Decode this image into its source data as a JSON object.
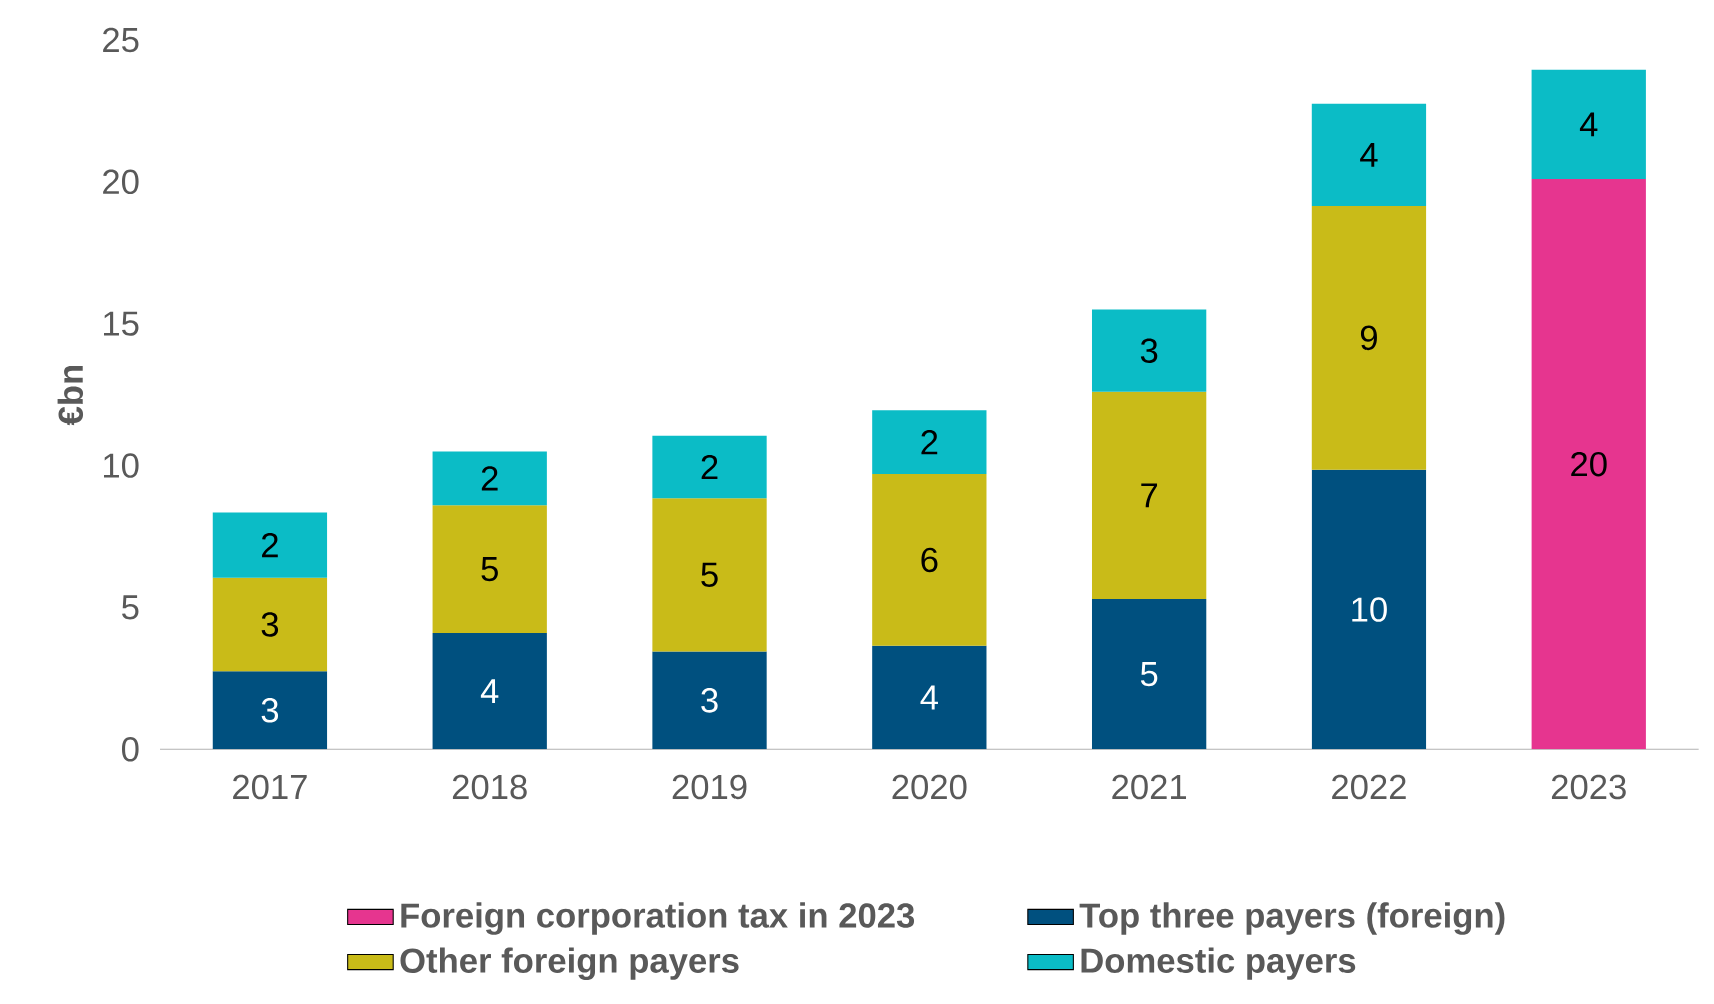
{
  "chart_data": {
    "type": "bar",
    "stacked": true,
    "ylabel": "€bn",
    "categories": [
      "2017",
      "2018",
      "2019",
      "2020",
      "2021",
      "2022",
      "2023"
    ],
    "series": [
      {
        "name": "Foreign corporation tax in 2023",
        "color": "#e6358f",
        "values": [
          null,
          null,
          null,
          null,
          null,
          null,
          20.1
        ],
        "value_labels": [
          null,
          null,
          null,
          null,
          null,
          null,
          "20"
        ]
      },
      {
        "name": "Top three payers (foreign)",
        "color": "#00507f",
        "values": [
          2.75,
          4.1,
          3.45,
          3.65,
          5.3,
          9.85,
          null
        ],
        "value_labels": [
          "3",
          "4",
          "3",
          "4",
          "5",
          "10",
          null
        ]
      },
      {
        "name": "Other foreign payers",
        "color": "#c9bb18",
        "values": [
          3.3,
          4.5,
          5.4,
          6.05,
          7.3,
          9.3,
          null
        ],
        "value_labels": [
          "3",
          "5",
          "5",
          "6",
          "7",
          "9",
          null
        ]
      },
      {
        "name": "Domestic payers",
        "color": "#0bbcc6",
        "values": [
          2.3,
          1.9,
          2.2,
          2.25,
          2.9,
          3.6,
          3.85
        ],
        "value_labels": [
          "2",
          "2",
          "2",
          "2",
          "3",
          "4",
          "4"
        ]
      }
    ],
    "ylim": [
      0,
      25
    ],
    "yticks": [
      0,
      5,
      10,
      15,
      20,
      25
    ],
    "grid": false,
    "legend": "bottom"
  }
}
